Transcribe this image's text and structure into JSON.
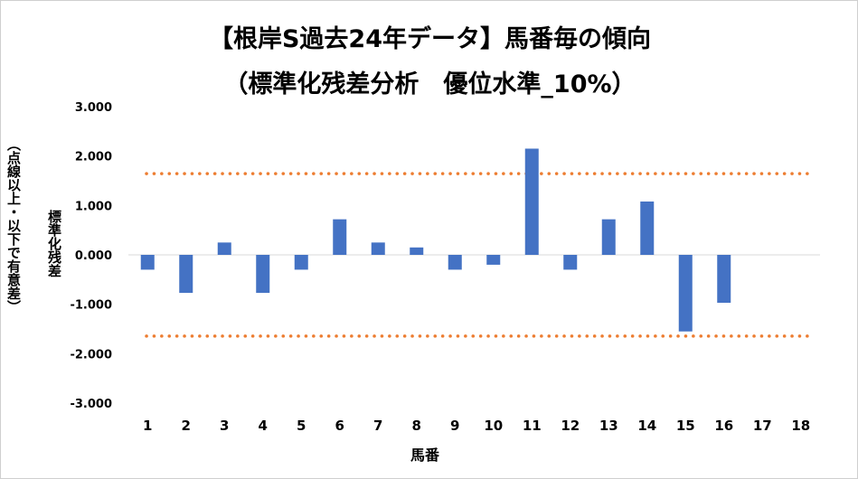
{
  "chart_data": {
    "type": "bar",
    "title": "【根岸S過去24年データ】馬番毎の傾向",
    "subtitle": "（標準化残差分析　優位水準_10%）",
    "xlabel": "馬番",
    "ylabel": "標準化残差",
    "ylabel_note": "（点線以上・以下で有意差）",
    "categories": [
      "1",
      "2",
      "3",
      "4",
      "5",
      "6",
      "7",
      "8",
      "9",
      "10",
      "11",
      "12",
      "13",
      "14",
      "15",
      "16",
      "17",
      "18"
    ],
    "values": [
      -0.3,
      -0.77,
      0.25,
      -0.77,
      -0.3,
      0.72,
      0.25,
      0.15,
      -0.3,
      -0.2,
      2.15,
      -0.3,
      0.72,
      1.08,
      -1.55,
      -0.97,
      null,
      null
    ],
    "ylim": [
      -3,
      3
    ],
    "yticks": [
      3,
      2,
      1,
      0,
      -1,
      -2,
      -3
    ],
    "ytick_labels": [
      "3.000",
      "2.000",
      "1.000",
      "0.000",
      "-1.000",
      "-2.000",
      "-3.000"
    ],
    "thresholds": [
      1.645,
      -1.645
    ],
    "grid": false,
    "legend": "none",
    "colors": {
      "bar": "#4472c4",
      "threshold": "#ed7d31",
      "axis": "#d9d9d9"
    }
  }
}
